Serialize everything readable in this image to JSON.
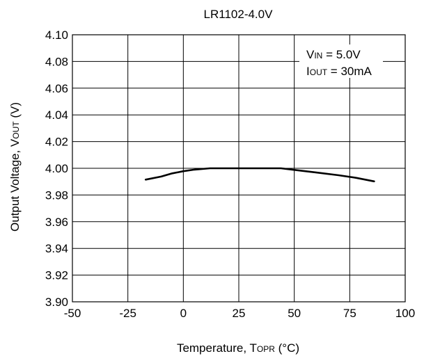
{
  "chart_data": {
    "type": "line",
    "title": "LR1102-4.0V",
    "xlabel": {
      "main": "Temperature, T",
      "sub": "OPR",
      "suffix": " (°C)"
    },
    "ylabel": {
      "main": "Output Voltage, V",
      "sub": "OUT",
      "suffix": " (V)"
    },
    "xlim": [
      -50,
      100
    ],
    "ylim": [
      3.9,
      4.1
    ],
    "x_ticks": [
      "-50",
      "-25",
      "0",
      "25",
      "50",
      "75",
      "100"
    ],
    "y_ticks": [
      "4.10",
      "4.08",
      "4.06",
      "4.04",
      "4.02",
      "4.00",
      "3.98",
      "3.96",
      "3.94",
      "3.92",
      "3.90"
    ],
    "grid": true,
    "annotations": [
      {
        "main": "V",
        "sub": "IN",
        "suffix": " = 5.0V"
      },
      {
        "main": "I",
        "sub": "OUT",
        "suffix": " = 30mA"
      }
    ],
    "series": [
      {
        "color": "#000000",
        "x": [
          -17,
          -10,
          -5,
          0,
          5,
          12,
          20,
          30,
          40,
          44,
          50,
          60,
          70,
          78,
          86
        ],
        "y": [
          3.9915,
          3.9938,
          3.9962,
          3.9978,
          3.999,
          4.0,
          4.0,
          4.0,
          4.0,
          4.0,
          3.9988,
          3.9968,
          3.9948,
          3.9928,
          3.9902
        ]
      }
    ]
  }
}
